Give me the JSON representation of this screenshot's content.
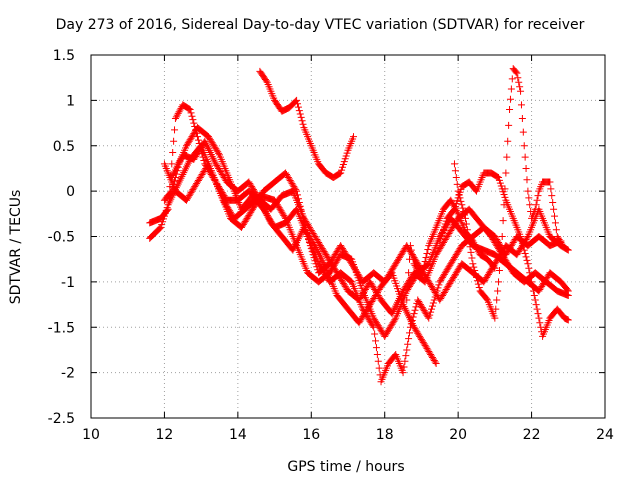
{
  "chart_data": {
    "type": "scatter",
    "title": "Day 273 of 2016, Sidereal Day-to-day VTEC variation (SDTVAR) for receiver",
    "xlabel": "GPS time / hours",
    "ylabel": "SDTVAR / TECUs",
    "xlim": [
      10,
      24
    ],
    "ylim": [
      -2.5,
      1.5
    ],
    "xticks": [
      "10",
      "12",
      "14",
      "16",
      "18",
      "20",
      "22",
      "24"
    ],
    "yticks": [
      "1.5",
      "1",
      "0.5",
      "0",
      "-0.5",
      "-1",
      "-1.5",
      "-2",
      "-2.5"
    ],
    "grid": true,
    "marker": "+",
    "color": "#ff0000",
    "series": [
      {
        "points": [
          [
            11.6,
            -0.52
          ],
          [
            11.9,
            -0.4
          ],
          [
            12.1,
            -0.15
          ],
          [
            12.4,
            0.1
          ],
          [
            12.7,
            0.35
          ],
          [
            13.0,
            0.5
          ],
          [
            13.3,
            0.2
          ],
          [
            13.6,
            -0.1
          ],
          [
            13.9,
            -0.3
          ],
          [
            14.2,
            -0.2
          ],
          [
            14.6,
            -0.05
          ],
          [
            15.0,
            -0.1
          ],
          [
            15.3,
            -0.3
          ],
          [
            15.6,
            -0.6
          ],
          [
            15.9,
            -0.9
          ],
          [
            16.2,
            -1.0
          ],
          [
            16.5,
            -0.9
          ],
          [
            16.8,
            -0.7
          ],
          [
            17.1,
            -0.75
          ],
          [
            17.4,
            -1.1
          ],
          [
            17.7,
            -1.4
          ],
          [
            18.0,
            -1.6
          ],
          [
            18.3,
            -1.4
          ],
          [
            18.6,
            -1.1
          ],
          [
            18.9,
            -0.9
          ],
          [
            19.2,
            -0.8
          ],
          [
            19.5,
            -0.5
          ],
          [
            19.8,
            -0.3
          ],
          [
            20.1,
            -0.45
          ],
          [
            20.4,
            -0.6
          ],
          [
            20.7,
            -0.65
          ],
          [
            21.0,
            -0.7
          ],
          [
            21.3,
            -0.8
          ],
          [
            21.6,
            -0.9
          ],
          [
            21.9,
            -1.0
          ],
          [
            22.2,
            -1.1
          ],
          [
            22.5,
            -0.9
          ],
          [
            22.8,
            -1.0
          ],
          [
            23.0,
            -1.1
          ]
        ]
      },
      {
        "points": [
          [
            11.6,
            -0.35
          ],
          [
            11.9,
            -0.3
          ],
          [
            12.1,
            -0.2
          ],
          [
            12.3,
            0.8
          ],
          [
            12.5,
            0.95
          ],
          [
            12.7,
            0.9
          ],
          [
            12.9,
            0.6
          ],
          [
            13.1,
            0.3
          ],
          [
            13.4,
            0.1
          ],
          [
            13.7,
            -0.1
          ],
          [
            14.0,
            -0.1
          ],
          [
            14.3,
            0.0
          ],
          [
            14.6,
            -0.1
          ],
          [
            14.9,
            -0.2
          ],
          [
            15.2,
            -0.05
          ],
          [
            15.5,
            0.0
          ],
          [
            15.8,
            -0.3
          ],
          [
            16.1,
            -0.5
          ],
          [
            16.4,
            -0.7
          ],
          [
            16.7,
            -0.9
          ],
          [
            17.0,
            -1.1
          ],
          [
            17.3,
            -1.2
          ],
          [
            17.6,
            -1.0
          ],
          [
            17.9,
            -1.2
          ],
          [
            18.2,
            -1.35
          ],
          [
            18.5,
            -1.1
          ],
          [
            18.8,
            -0.9
          ],
          [
            19.1,
            -1.0
          ],
          [
            19.4,
            -0.7
          ],
          [
            19.7,
            -0.5
          ],
          [
            20.0,
            -0.3
          ],
          [
            20.3,
            -0.2
          ],
          [
            20.6,
            -0.35
          ],
          [
            20.9,
            -0.5
          ],
          [
            21.2,
            -0.7
          ],
          [
            21.5,
            -0.9
          ],
          [
            21.8,
            -1.0
          ],
          [
            22.1,
            -0.9
          ],
          [
            22.4,
            -1.0
          ],
          [
            22.7,
            -1.1
          ],
          [
            23.0,
            -1.15
          ]
        ]
      },
      {
        "points": [
          [
            12.0,
            -0.1
          ],
          [
            12.2,
            0.0
          ],
          [
            12.4,
            0.3
          ],
          [
            12.6,
            0.5
          ],
          [
            12.9,
            0.7
          ],
          [
            13.2,
            0.6
          ],
          [
            13.5,
            0.4
          ],
          [
            13.8,
            0.1
          ],
          [
            14.1,
            -0.2
          ],
          [
            14.4,
            -0.05
          ],
          [
            14.7,
            -0.2
          ],
          [
            15.0,
            -0.4
          ],
          [
            15.3,
            -0.35
          ],
          [
            15.6,
            -0.2
          ],
          [
            15.9,
            -0.5
          ],
          [
            16.2,
            -0.8
          ],
          [
            16.5,
            -1.0
          ],
          [
            16.8,
            -0.9
          ],
          [
            17.1,
            -1.0
          ],
          [
            17.4,
            -1.3
          ],
          [
            17.7,
            -1.5
          ],
          [
            17.9,
            -2.1
          ],
          [
            18.1,
            -1.9
          ],
          [
            18.3,
            -1.8
          ],
          [
            18.5,
            -2.0
          ],
          [
            18.7,
            -1.5
          ],
          [
            18.9,
            -1.2
          ],
          [
            19.2,
            -1.4
          ],
          [
            19.5,
            -1.0
          ],
          [
            19.8,
            -0.8
          ],
          [
            20.1,
            -0.6
          ],
          [
            20.4,
            -0.5
          ],
          [
            20.7,
            -0.4
          ],
          [
            21.0,
            -0.5
          ],
          [
            21.3,
            -0.7
          ],
          [
            21.6,
            -0.5
          ],
          [
            21.9,
            -0.6
          ],
          [
            22.2,
            -0.5
          ],
          [
            22.5,
            -0.6
          ],
          [
            22.8,
            -0.55
          ]
        ]
      },
      {
        "points": [
          [
            12.0,
            0.3
          ],
          [
            12.3,
            0.0
          ],
          [
            12.6,
            -0.1
          ],
          [
            12.9,
            0.1
          ],
          [
            13.2,
            0.3
          ],
          [
            13.5,
            0.0
          ],
          [
            13.8,
            -0.3
          ],
          [
            14.1,
            -0.4
          ],
          [
            14.4,
            -0.2
          ],
          [
            14.7,
            0.0
          ],
          [
            15.0,
            0.1
          ],
          [
            15.3,
            0.2
          ],
          [
            15.6,
            0.0
          ],
          [
            15.9,
            -0.5
          ],
          [
            16.2,
            -0.9
          ],
          [
            16.5,
            -0.8
          ],
          [
            16.8,
            -0.6
          ],
          [
            17.1,
            -0.8
          ],
          [
            17.4,
            -1.0
          ],
          [
            17.7,
            -0.9
          ],
          [
            18.0,
            -1.0
          ],
          [
            18.3,
            -0.8
          ],
          [
            18.6,
            -0.6
          ],
          [
            18.9,
            -0.8
          ],
          [
            19.2,
            -1.0
          ],
          [
            19.5,
            -1.2
          ],
          [
            19.8,
            -1.0
          ],
          [
            20.1,
            -0.8
          ],
          [
            20.4,
            -0.9
          ],
          [
            20.7,
            -1.0
          ],
          [
            21.0,
            -0.8
          ],
          [
            21.3,
            -0.6
          ],
          [
            21.6,
            -0.7
          ],
          [
            21.9,
            -0.5
          ],
          [
            22.2,
            -0.2
          ],
          [
            22.5,
            -0.5
          ],
          [
            22.8,
            -0.6
          ],
          [
            23.0,
            -0.65
          ]
        ]
      },
      {
        "points": [
          [
            14.6,
            1.32
          ],
          [
            14.8,
            1.2
          ],
          [
            15.0,
            1.0
          ],
          [
            15.2,
            0.88
          ],
          [
            15.4,
            0.92
          ],
          [
            15.6,
            1.0
          ],
          [
            15.8,
            0.7
          ],
          [
            16.0,
            0.5
          ],
          [
            16.2,
            0.3
          ],
          [
            16.4,
            0.2
          ],
          [
            16.6,
            0.15
          ],
          [
            16.8,
            0.2
          ],
          [
            17.0,
            0.45
          ],
          [
            17.15,
            0.6
          ]
        ]
      },
      {
        "points": [
          [
            19.9,
            0.3
          ],
          [
            20.0,
            0.0
          ],
          [
            20.2,
            -0.3
          ],
          [
            20.4,
            -0.8
          ],
          [
            20.6,
            -1.1
          ],
          [
            20.8,
            -1.2
          ],
          [
            21.0,
            -1.4
          ],
          [
            21.1,
            -1.0
          ],
          [
            21.2,
            -0.5
          ],
          [
            21.3,
            0.2
          ],
          [
            21.4,
            0.9
          ],
          [
            21.5,
            1.35
          ],
          [
            21.6,
            1.3
          ],
          [
            21.7,
            1.1
          ],
          [
            21.8,
            0.5
          ],
          [
            21.9,
            0.0
          ],
          [
            22.0,
            -0.3
          ],
          [
            22.1,
            -0.2
          ],
          [
            22.2,
            0.0
          ],
          [
            22.3,
            0.1
          ],
          [
            22.5,
            0.1
          ],
          [
            22.6,
            -0.2
          ],
          [
            22.7,
            -0.5
          ],
          [
            22.85,
            -0.6
          ]
        ]
      },
      {
        "points": [
          [
            19.5,
            -0.55
          ],
          [
            19.7,
            -0.3
          ],
          [
            19.9,
            -0.2
          ],
          [
            20.1,
            0.05
          ],
          [
            20.3,
            0.1
          ],
          [
            20.5,
            0.0
          ],
          [
            20.7,
            0.2
          ],
          [
            20.9,
            0.2
          ],
          [
            21.1,
            0.15
          ],
          [
            21.3,
            -0.1
          ],
          [
            21.5,
            -0.3
          ],
          [
            21.7,
            -0.5
          ],
          [
            21.9,
            -0.8
          ],
          [
            22.1,
            -1.2
          ],
          [
            22.3,
            -1.6
          ],
          [
            22.5,
            -1.4
          ],
          [
            22.7,
            -1.3
          ],
          [
            22.9,
            -1.4
          ],
          [
            23.0,
            -1.42
          ]
        ]
      },
      {
        "points": [
          [
            18.6,
            -1.2
          ],
          [
            18.7,
            -0.6
          ],
          [
            18.8,
            -0.8
          ],
          [
            19.0,
            -0.95
          ],
          [
            19.2,
            -0.6
          ],
          [
            19.4,
            -0.4
          ],
          [
            19.6,
            -0.2
          ],
          [
            19.8,
            -0.1
          ],
          [
            20.0,
            -0.25
          ],
          [
            20.2,
            -0.45
          ],
          [
            20.4,
            -0.55
          ],
          [
            20.6,
            -0.7
          ],
          [
            20.8,
            -0.75
          ],
          [
            21.0,
            -0.85
          ]
        ]
      },
      {
        "points": [
          [
            12.2,
            0.15
          ],
          [
            12.5,
            0.4
          ],
          [
            12.8,
            0.35
          ],
          [
            13.1,
            0.55
          ],
          [
            13.4,
            0.3
          ],
          [
            13.7,
            0.1
          ],
          [
            14.0,
            0.0
          ],
          [
            14.3,
            0.1
          ],
          [
            14.6,
            -0.1
          ],
          [
            14.9,
            -0.35
          ],
          [
            15.2,
            -0.5
          ],
          [
            15.5,
            -0.65
          ],
          [
            15.8,
            -0.4
          ],
          [
            16.1,
            -0.6
          ],
          [
            16.4,
            -0.85
          ],
          [
            16.7,
            -1.15
          ],
          [
            17.0,
            -1.3
          ],
          [
            17.3,
            -1.45
          ],
          [
            17.6,
            -1.25
          ],
          [
            17.9,
            -1.05
          ],
          [
            18.2,
            -0.9
          ],
          [
            18.5,
            -1.25
          ],
          [
            18.8,
            -1.5
          ],
          [
            19.1,
            -1.7
          ],
          [
            19.4,
            -1.9
          ]
        ]
      }
    ]
  }
}
